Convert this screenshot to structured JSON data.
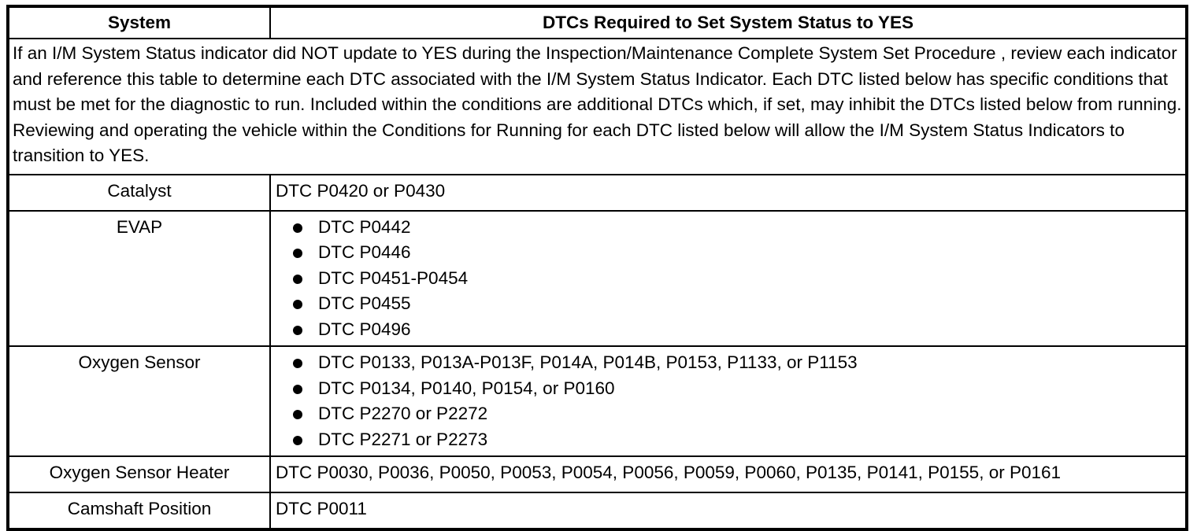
{
  "table": {
    "headers": [
      "System",
      "DTCs Required to Set System Status to YES"
    ],
    "intro": "If an I/M System Status indicator did NOT update to YES during the Inspection/Maintenance Complete System Set Procedure , review each indicator and reference this table to determine each DTC associated with the I/M System Status Indicator. Each DTC listed below has specific conditions that must be met for the diagnostic to run. Included within the conditions are additional DTCs which, if set, may inhibit the DTCs listed below from running. Reviewing and operating the vehicle within the Conditions for Running for each DTC listed below will allow the I/M System Status Indicators to transition to YES.",
    "rows": [
      {
        "system": "Catalyst",
        "dtcs": "DTC P0420 or P0430"
      },
      {
        "system": "EVAP",
        "items": [
          "DTC P0442",
          "DTC P0446",
          "DTC P0451-P0454",
          "DTC P0455",
          "DTC P0496"
        ]
      },
      {
        "system": "Oxygen Sensor",
        "items": [
          "DTC P0133, P013A-P013F, P014A, P014B, P0153, P1133, or P1153",
          "DTC P0134, P0140, P0154, or P0160",
          "DTC P2270 or P2272",
          "DTC P2271 or P2273"
        ]
      },
      {
        "system": "Oxygen Sensor Heater",
        "dtcs": "DTC P0030, P0036, P0050, P0053, P0054, P0056, P0059, P0060, P0135, P0141, P0155, or P0161"
      },
      {
        "system": "Camshaft Position",
        "dtcs": "DTC P0011"
      }
    ]
  }
}
